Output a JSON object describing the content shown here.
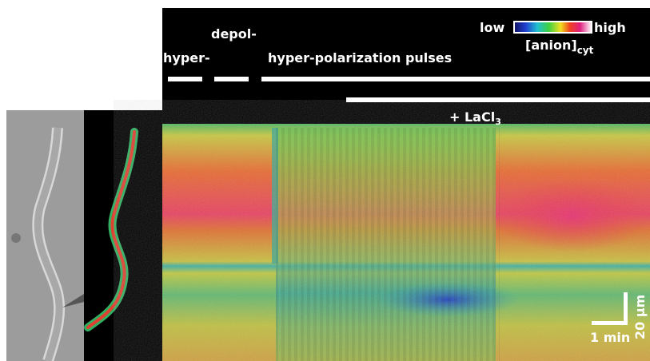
{
  "colorbar": {
    "low": "low",
    "high": "high",
    "quantity": "[anion]",
    "quantity_subscript": "cyt"
  },
  "protocol": {
    "hyper": "hyper-",
    "depol": "depol-",
    "pulses": "hyper-polarization pulses",
    "lacl": "+ LaCl",
    "lacl_subscript": "3"
  },
  "scale_bar": {
    "time": "1 min",
    "length": "20 µm"
  }
}
